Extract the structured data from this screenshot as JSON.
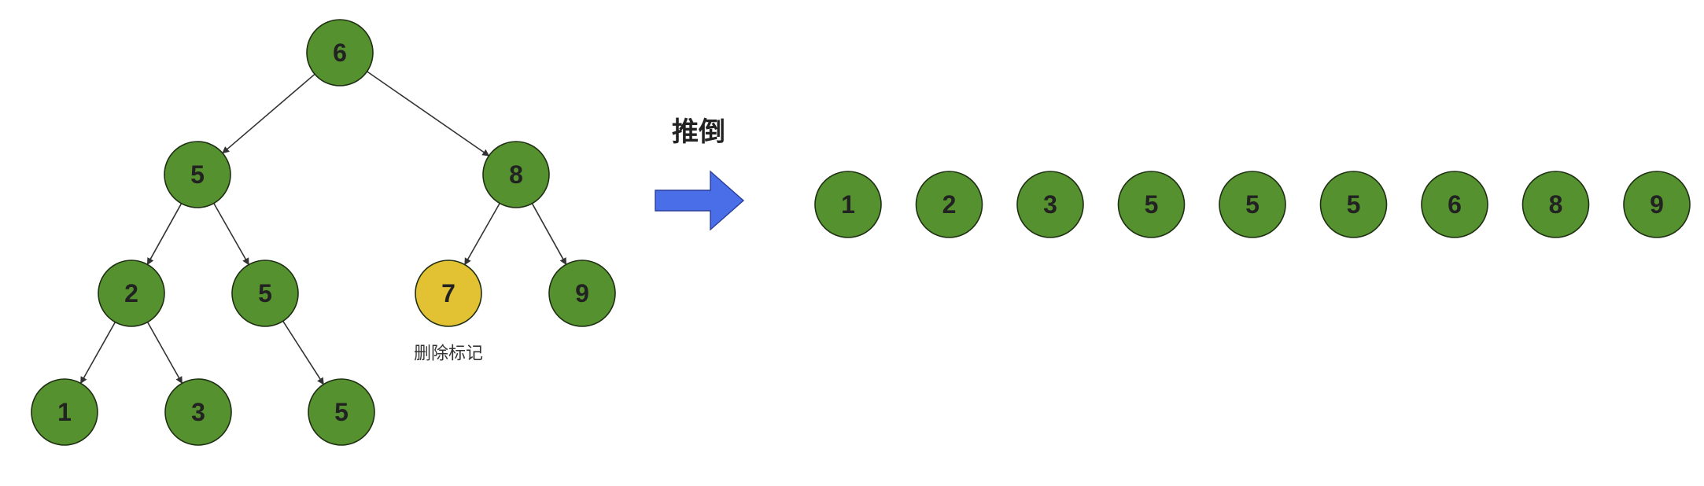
{
  "colors": {
    "node_fill": "#55922f",
    "marked_fill": "#e2c232",
    "arrow_fill": "#4a6de8",
    "edge": "#333333"
  },
  "tree": {
    "nodes": [
      {
        "id": "n6",
        "label": "6"
      },
      {
        "id": "n5a",
        "label": "5"
      },
      {
        "id": "n8",
        "label": "8"
      },
      {
        "id": "n2",
        "label": "2"
      },
      {
        "id": "n5b",
        "label": "5"
      },
      {
        "id": "n7",
        "label": "7",
        "marked": true
      },
      {
        "id": "n9",
        "label": "9"
      },
      {
        "id": "n1",
        "label": "1"
      },
      {
        "id": "n3",
        "label": "3"
      },
      {
        "id": "n5c",
        "label": "5"
      }
    ],
    "edges": [
      [
        "n6",
        "n5a"
      ],
      [
        "n6",
        "n8"
      ],
      [
        "n5a",
        "n2"
      ],
      [
        "n5a",
        "n5b"
      ],
      [
        "n8",
        "n7"
      ],
      [
        "n8",
        "n9"
      ],
      [
        "n2",
        "n1"
      ],
      [
        "n2",
        "n3"
      ],
      [
        "n5b",
        "n5c"
      ]
    ],
    "marked_note": "删除标记"
  },
  "transform": {
    "label": "推倒",
    "icon": "right-arrow-icon"
  },
  "sequence": {
    "items": [
      "1",
      "2",
      "3",
      "5",
      "5",
      "5",
      "6",
      "8",
      "9"
    ]
  }
}
